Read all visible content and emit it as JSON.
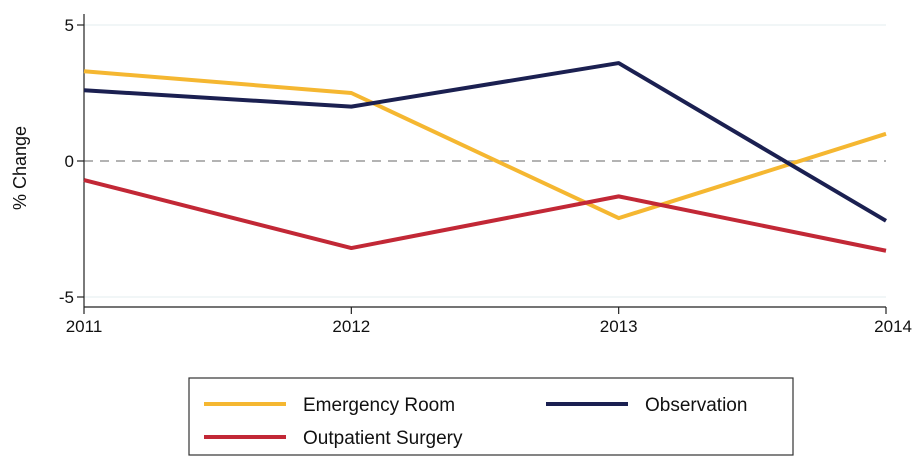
{
  "chart_data": {
    "type": "line",
    "title": "",
    "xlabel": "",
    "ylabel": "% Change",
    "x": [
      2011,
      2012,
      2013,
      2014
    ],
    "xlim": [
      2011,
      2014
    ],
    "ylim": [
      -5,
      5
    ],
    "yticks": [
      -5,
      0,
      5
    ],
    "xticks": [
      2011,
      2012,
      2013,
      2014
    ],
    "grid": true,
    "reference_line": 0,
    "legend_position": "bottom",
    "series": [
      {
        "name": "Emergency Room",
        "color": "#f5b731",
        "values": [
          3.3,
          2.5,
          -2.1,
          1.0
        ]
      },
      {
        "name": "Observation",
        "color": "#1b2051",
        "values": [
          2.6,
          2.0,
          3.6,
          -2.2
        ]
      },
      {
        "name": "Outpatient Surgery",
        "color": "#c22836",
        "values": [
          -0.7,
          -3.2,
          -1.3,
          -3.3
        ]
      }
    ]
  }
}
